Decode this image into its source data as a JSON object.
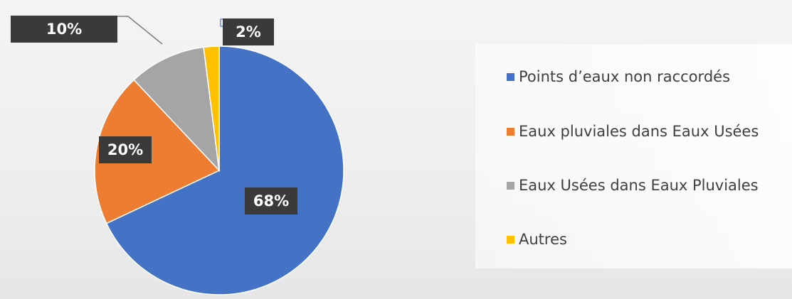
{
  "chart_data": {
    "type": "pie",
    "title": "",
    "start_angle_deg": 0,
    "direction": "clockwise",
    "categories": [
      "Points d’eaux non raccordés",
      "Eaux pluviales dans Eaux Usées",
      "Eaux Usées dans Eaux Pluviales",
      "Autres"
    ],
    "values": [
      68,
      20,
      10,
      2
    ],
    "data_labels": [
      "68%",
      "20%",
      "10%",
      "2%"
    ],
    "colors": [
      "#4472c4",
      "#ed7d31",
      "#a5a5a5",
      "#ffc000"
    ],
    "label_style": {
      "background": "#3a3a3a",
      "text": "#ffffff"
    },
    "legend": {
      "position": "right"
    }
  }
}
